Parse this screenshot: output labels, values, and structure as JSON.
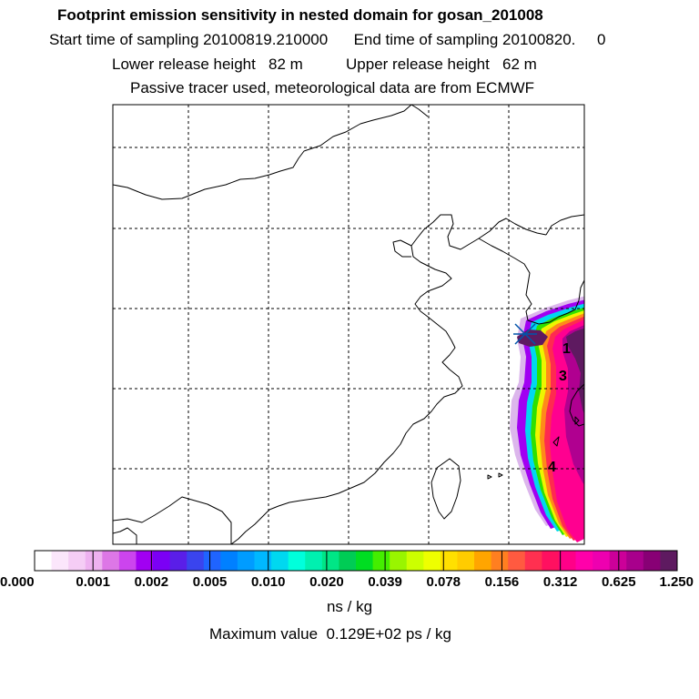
{
  "header": {
    "title": "Footprint emission sensitivity in nested domain for gosan_201008",
    "start_label": "Start time of sampling 20100819.210000",
    "end_label": "End time of sampling 20100820.     0",
    "lower_label": "Lower release height   82 m",
    "upper_label": "Upper release height   62 m",
    "note": "Passive tracer used, meteorological data are from ECMWF"
  },
  "map": {
    "markers": [
      "1",
      "3",
      "4"
    ]
  },
  "colorbar": {
    "tick_labels": [
      "0.000",
      "0.001",
      "0.002",
      "0.005",
      "0.010",
      "0.020",
      "0.039",
      "0.078",
      "0.156",
      "0.312",
      "0.625",
      "1.250"
    ],
    "colors": [
      "#ffffff",
      "#fbe6fb",
      "#f5cdf5",
      "#eeb1f0",
      "#dd77e6",
      "#cc44ee",
      "#a100f2",
      "#7b00f5",
      "#5a1ee8",
      "#3a44ee",
      "#1f64ff",
      "#0080ff",
      "#009cff",
      "#00b8ff",
      "#00d8f0",
      "#00ffdc",
      "#00f0b0",
      "#00e686",
      "#00cc55",
      "#00dd22",
      "#44ee00",
      "#99f500",
      "#ccff00",
      "#eeff00",
      "#ffe000",
      "#ffcc00",
      "#ffa500",
      "#ff7f20",
      "#ff5a40",
      "#ff3050",
      "#ff1060",
      "#ff0088",
      "#ff00aa",
      "#ee00b0",
      "#cc0099",
      "#a8008c",
      "#880075",
      "#5e1a60"
    ],
    "units": "ns / kg"
  },
  "footer": {
    "max_value": "Maximum value  0.129E+02 ps / kg"
  }
}
